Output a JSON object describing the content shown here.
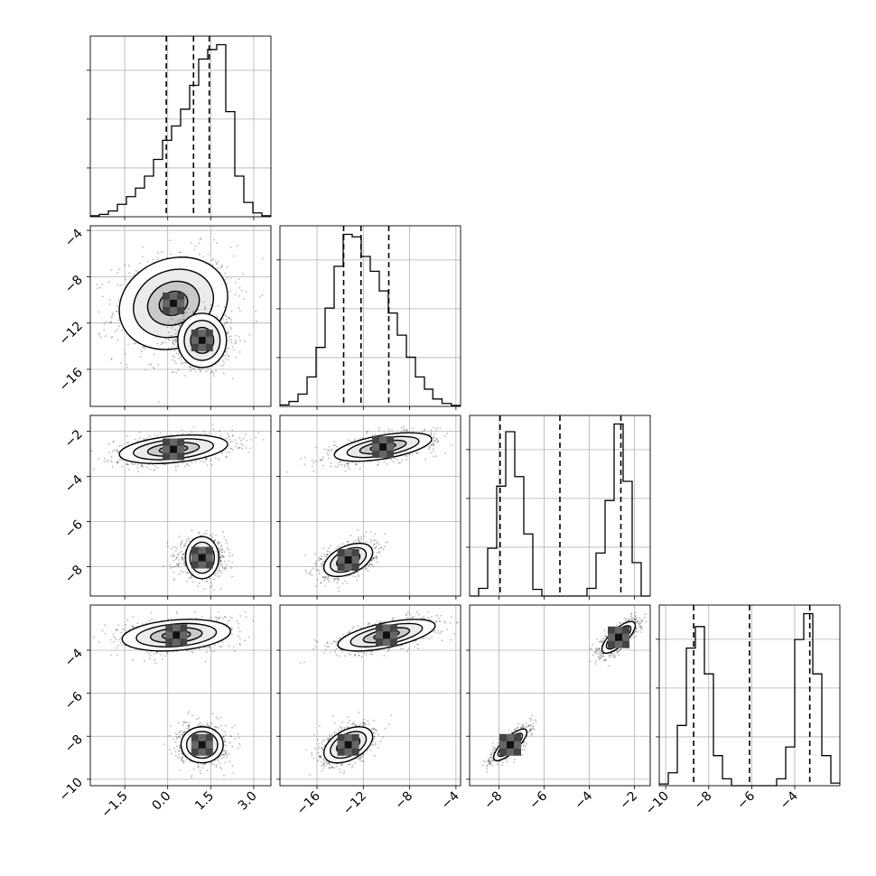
{
  "chart_data": {
    "type": "corner",
    "parameters": 4,
    "grid": true,
    "quantile_lines": "dashed",
    "axes": [
      {
        "index": 0,
        "range": [
          -2.7,
          3.6
        ],
        "ticks": [
          -1.5,
          0.0,
          1.5,
          3.0
        ],
        "tick_labels": [
          "−1.5",
          "0.0",
          "1.5",
          "3.0"
        ]
      },
      {
        "index": 1,
        "range": [
          -19.2,
          -3.6
        ],
        "ticks": [
          -16,
          -12,
          -8,
          -4
        ],
        "tick_labels": [
          "−16",
          "−12",
          "−8",
          "−4"
        ]
      },
      {
        "index": 2,
        "range": [
          -9.3,
          -1.3
        ],
        "ticks": [
          -8,
          -6,
          -4,
          -2
        ],
        "tick_labels": [
          "−8",
          "−6",
          "−4",
          "−2"
        ]
      },
      {
        "index": 3,
        "range": [
          -10.3,
          -1.9
        ],
        "ticks": [
          -10,
          -8,
          -6,
          -4
        ],
        "tick_labels": [
          "−10",
          "−8",
          "−6",
          "−4"
        ]
      }
    ],
    "histograms": [
      {
        "param": 0,
        "bin_edges": [
          -2.7,
          -2.385,
          -2.07,
          -1.755,
          -1.44,
          -1.125,
          -0.81,
          -0.495,
          -0.18,
          0.135,
          0.45,
          0.765,
          1.08,
          1.395,
          1.71,
          2.025,
          2.34,
          2.655,
          2.97,
          3.285,
          3.6
        ],
        "counts": [
          0.2,
          0.5,
          1.2,
          2.6,
          4.2,
          6.0,
          8.5,
          12.0,
          16.0,
          19.0,
          22.5,
          27.5,
          33.0,
          35.0,
          36.0,
          22.0,
          8.5,
          3.0,
          0.8,
          0.2
        ],
        "quantiles": [
          -0.05,
          0.9,
          1.45
        ]
      },
      {
        "param": 1,
        "bin_edges": [
          -19.2,
          -18.42,
          -17.64,
          -16.86,
          -16.08,
          -15.3,
          -14.52,
          -13.74,
          -12.96,
          -12.18,
          -11.4,
          -10.62,
          -9.84,
          -9.06,
          -8.28,
          -7.5,
          -6.72,
          -6.0,
          -5.2,
          -4.4,
          -3.6
        ],
        "counts": [
          0.3,
          1.0,
          2.5,
          6.0,
          12.0,
          20.0,
          28.5,
          35.0,
          34.5,
          30.5,
          27.5,
          23.5,
          19.0,
          14.5,
          10.0,
          6.0,
          3.5,
          1.5,
          0.6,
          0.2
        ],
        "quantiles": [
          -13.7,
          -12.2,
          -9.8
        ]
      },
      {
        "param": 2,
        "bin_edges": [
          -9.3,
          -8.9,
          -8.5,
          -8.1,
          -7.7,
          -7.3,
          -6.9,
          -6.5,
          -6.1,
          -5.7,
          -5.3,
          -4.9,
          -4.5,
          -4.1,
          -3.7,
          -3.3,
          -2.9,
          -2.5,
          -2.1,
          -1.7,
          -1.3
        ],
        "counts": [
          0,
          0.8,
          5,
          11.5,
          17.2,
          12.5,
          6.5,
          0.7,
          0,
          0,
          0,
          0,
          0,
          0.8,
          4.5,
          10,
          18,
          12,
          3.5,
          0
        ],
        "quantiles": [
          -7.95,
          -5.3,
          -2.6
        ]
      },
      {
        "param": 3,
        "bin_edges": [
          -10.3,
          -9.88,
          -9.46,
          -9.04,
          -8.62,
          -8.2,
          -7.78,
          -7.36,
          -6.94,
          -6.52,
          -6.1,
          -5.68,
          -5.26,
          -4.84,
          -4.42,
          -4.0,
          -3.58,
          -3.16,
          -2.74,
          -2.32,
          -1.9
        ],
        "counts": [
          0.2,
          1.5,
          7,
          16,
          18.5,
          13,
          3.5,
          0.8,
          0,
          0,
          0,
          0,
          0,
          0.8,
          4.5,
          17,
          20,
          13,
          3.5,
          0.3
        ],
        "quantiles": [
          -8.7,
          -6.1,
          -3.3
        ]
      }
    ],
    "pairs": [
      {
        "x": 0,
        "y": 1,
        "blobs": [
          {
            "center": [
              0.2,
              -10.3
            ],
            "sigma": [
              0.9,
              1.9
            ],
            "rho": 0.15,
            "weight": 0.5
          },
          {
            "center": [
              1.2,
              -13.5
            ],
            "sigma": [
              0.45,
              1.0
            ],
            "rho": 0.0,
            "weight": 0.5
          }
        ]
      },
      {
        "x": 0,
        "y": 2,
        "blobs": [
          {
            "center": [
              0.2,
              -2.8
            ],
            "sigma": [
              0.9,
              0.3
            ],
            "rho": 0.35,
            "weight": 0.5
          },
          {
            "center": [
              1.2,
              -7.6
            ],
            "sigma": [
              0.35,
              0.35
            ],
            "rho": 0.0,
            "weight": 0.5
          }
        ]
      },
      {
        "x": 1,
        "y": 2,
        "blobs": [
          {
            "center": [
              -10.3,
              -2.7
            ],
            "sigma": [
              2.0,
              0.3
            ],
            "rho": 0.55,
            "weight": 0.5
          },
          {
            "center": [
              -13.3,
              -7.7
            ],
            "sigma": [
              1.0,
              0.35
            ],
            "rho": 0.45,
            "weight": 0.5
          }
        ]
      },
      {
        "x": 0,
        "y": 3,
        "blobs": [
          {
            "center": [
              0.3,
              -3.3
            ],
            "sigma": [
              0.9,
              0.35
            ],
            "rho": 0.25,
            "weight": 0.5
          },
          {
            "center": [
              1.2,
              -8.4
            ],
            "sigma": [
              0.35,
              0.4
            ],
            "rho": 0.0,
            "weight": 0.5
          }
        ]
      },
      {
        "x": 1,
        "y": 3,
        "blobs": [
          {
            "center": [
              -10.0,
              -3.3
            ],
            "sigma": [
              2.0,
              0.35
            ],
            "rho": 0.6,
            "weight": 0.5
          },
          {
            "center": [
              -13.3,
              -8.4
            ],
            "sigma": [
              1.0,
              0.4
            ],
            "rho": 0.45,
            "weight": 0.5
          }
        ]
      },
      {
        "x": 2,
        "y": 3,
        "blobs": [
          {
            "center": [
              -2.7,
              -3.4
            ],
            "sigma": [
              0.35,
              0.35
            ],
            "rho": 0.75,
            "weight": 0.5
          },
          {
            "center": [
              -7.5,
              -8.4
            ],
            "sigma": [
              0.35,
              0.35
            ],
            "rho": 0.8,
            "weight": 0.5
          }
        ]
      }
    ]
  }
}
